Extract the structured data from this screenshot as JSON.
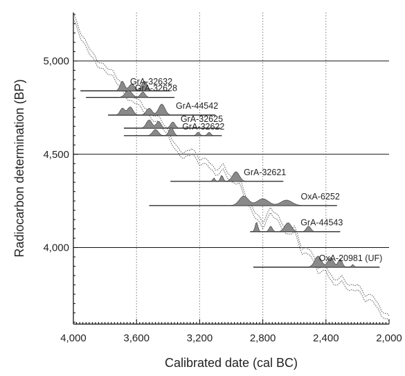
{
  "chart_data": {
    "type": "line",
    "xlabel": "Calibrated date (cal BC)",
    "ylabel": "Radiocarbon determination (BP)",
    "xlim": [
      4000,
      2000
    ],
    "ylim": [
      3590,
      5260
    ],
    "x_reversed": true,
    "x_ticks": [
      4000,
      3600,
      3200,
      2800,
      2400,
      2000
    ],
    "x_tick_labels": [
      "4,000",
      "3,600",
      "3,200",
      "2,800",
      "2,400",
      "2,000"
    ],
    "y_ticks": [
      5000,
      4500,
      4000
    ],
    "y_tick_labels": [
      "5,000",
      "4,500",
      "4,000"
    ],
    "grid": {
      "horizontal": "solid",
      "vertical": "dotted"
    },
    "calibration_curve": {
      "x": [
        4000,
        3950,
        3900,
        3850,
        3800,
        3750,
        3700,
        3650,
        3600,
        3550,
        3500,
        3450,
        3400,
        3350,
        3300,
        3250,
        3200,
        3150,
        3100,
        3050,
        3000,
        2950,
        2900,
        2850,
        2800,
        2750,
        2700,
        2650,
        2600,
        2550,
        2500,
        2450,
        2400,
        2350,
        2300,
        2250,
        2200,
        2150,
        2100,
        2050,
        2000
      ],
      "y": [
        5240,
        5130,
        5060,
        4990,
        4960,
        4930,
        4870,
        4800,
        4790,
        4740,
        4700,
        4680,
        4610,
        4530,
        4490,
        4520,
        4460,
        4460,
        4400,
        4430,
        4360,
        4360,
        4250,
        4180,
        4120,
        4200,
        4150,
        4080,
        4100,
        3980,
        3980,
        3880,
        3890,
        3810,
        3830,
        3780,
        3790,
        3730,
        3730,
        3650,
        3620
      ]
    },
    "samples": [
      {
        "name": "GrA-32632",
        "measured_bp": 4840,
        "range_bc": [
          3955,
          3390
        ],
        "peaks": [
          {
            "center": 3690,
            "width": 20,
            "height": 14
          },
          {
            "center": 3630,
            "width": 25,
            "height": 10
          },
          {
            "center": 3550,
            "width": 25,
            "height": 14
          }
        ]
      },
      {
        "name": "GrA-32628",
        "measured_bp": 4805,
        "range_bc": [
          3920,
          3360
        ],
        "peaks": [
          {
            "center": 3650,
            "width": 30,
            "height": 10
          },
          {
            "center": 3560,
            "width": 20,
            "height": 8
          }
        ]
      },
      {
        "name": "GrA-44542",
        "measured_bp": 4710,
        "range_bc": [
          3780,
          3100
        ],
        "peaks": [
          {
            "center": 3690,
            "width": 20,
            "height": 10
          },
          {
            "center": 3640,
            "width": 25,
            "height": 12
          },
          {
            "center": 3520,
            "width": 25,
            "height": 10
          },
          {
            "center": 3440,
            "width": 28,
            "height": 16
          }
        ]
      },
      {
        "name": "GrA-32625",
        "measured_bp": 4640,
        "range_bc": [
          3680,
          3070
        ],
        "peaks": [
          {
            "center": 3520,
            "width": 25,
            "height": 12
          },
          {
            "center": 3460,
            "width": 20,
            "height": 10
          },
          {
            "center": 3370,
            "width": 20,
            "height": 9
          }
        ]
      },
      {
        "name": "GrA-32622",
        "measured_bp": 4600,
        "range_bc": [
          3680,
          3060
        ],
        "peaks": [
          {
            "center": 3480,
            "width": 25,
            "height": 9
          },
          {
            "center": 3380,
            "width": 20,
            "height": 12
          },
          {
            "center": 3210,
            "width": 14,
            "height": 5
          },
          {
            "center": 3140,
            "width": 14,
            "height": 5
          }
        ]
      },
      {
        "name": "GrA-32621",
        "measured_bp": 4355,
        "range_bc": [
          3385,
          2670
        ],
        "peaks": [
          {
            "center": 3110,
            "width": 10,
            "height": 5
          },
          {
            "center": 3060,
            "width": 12,
            "height": 9
          },
          {
            "center": 2970,
            "width": 30,
            "height": 14
          }
        ]
      },
      {
        "name": "OxA-6252",
        "measured_bp": 4225,
        "range_bc": [
          3520,
          2330
        ],
        "peaks": [
          {
            "center": 2920,
            "width": 40,
            "height": 14
          },
          {
            "center": 2800,
            "width": 50,
            "height": 10
          },
          {
            "center": 2650,
            "width": 50,
            "height": 8
          }
        ]
      },
      {
        "name": "GrA-44543",
        "measured_bp": 4085,
        "range_bc": [
          2880,
          2310
        ],
        "peaks": [
          {
            "center": 2840,
            "width": 12,
            "height": 14
          },
          {
            "center": 2750,
            "width": 15,
            "height": 8
          },
          {
            "center": 2640,
            "width": 30,
            "height": 13
          },
          {
            "center": 2510,
            "width": 20,
            "height": 8
          }
        ]
      },
      {
        "name": "OxA-20981 (UF)",
        "measured_bp": 3895,
        "range_bc": [
          2860,
          2060
        ],
        "peaks": [
          {
            "center": 2450,
            "width": 30,
            "height": 16
          },
          {
            "center": 2370,
            "width": 25,
            "height": 14
          },
          {
            "center": 2310,
            "width": 18,
            "height": 12
          },
          {
            "center": 2230,
            "width": 10,
            "height": 4
          }
        ]
      }
    ]
  }
}
